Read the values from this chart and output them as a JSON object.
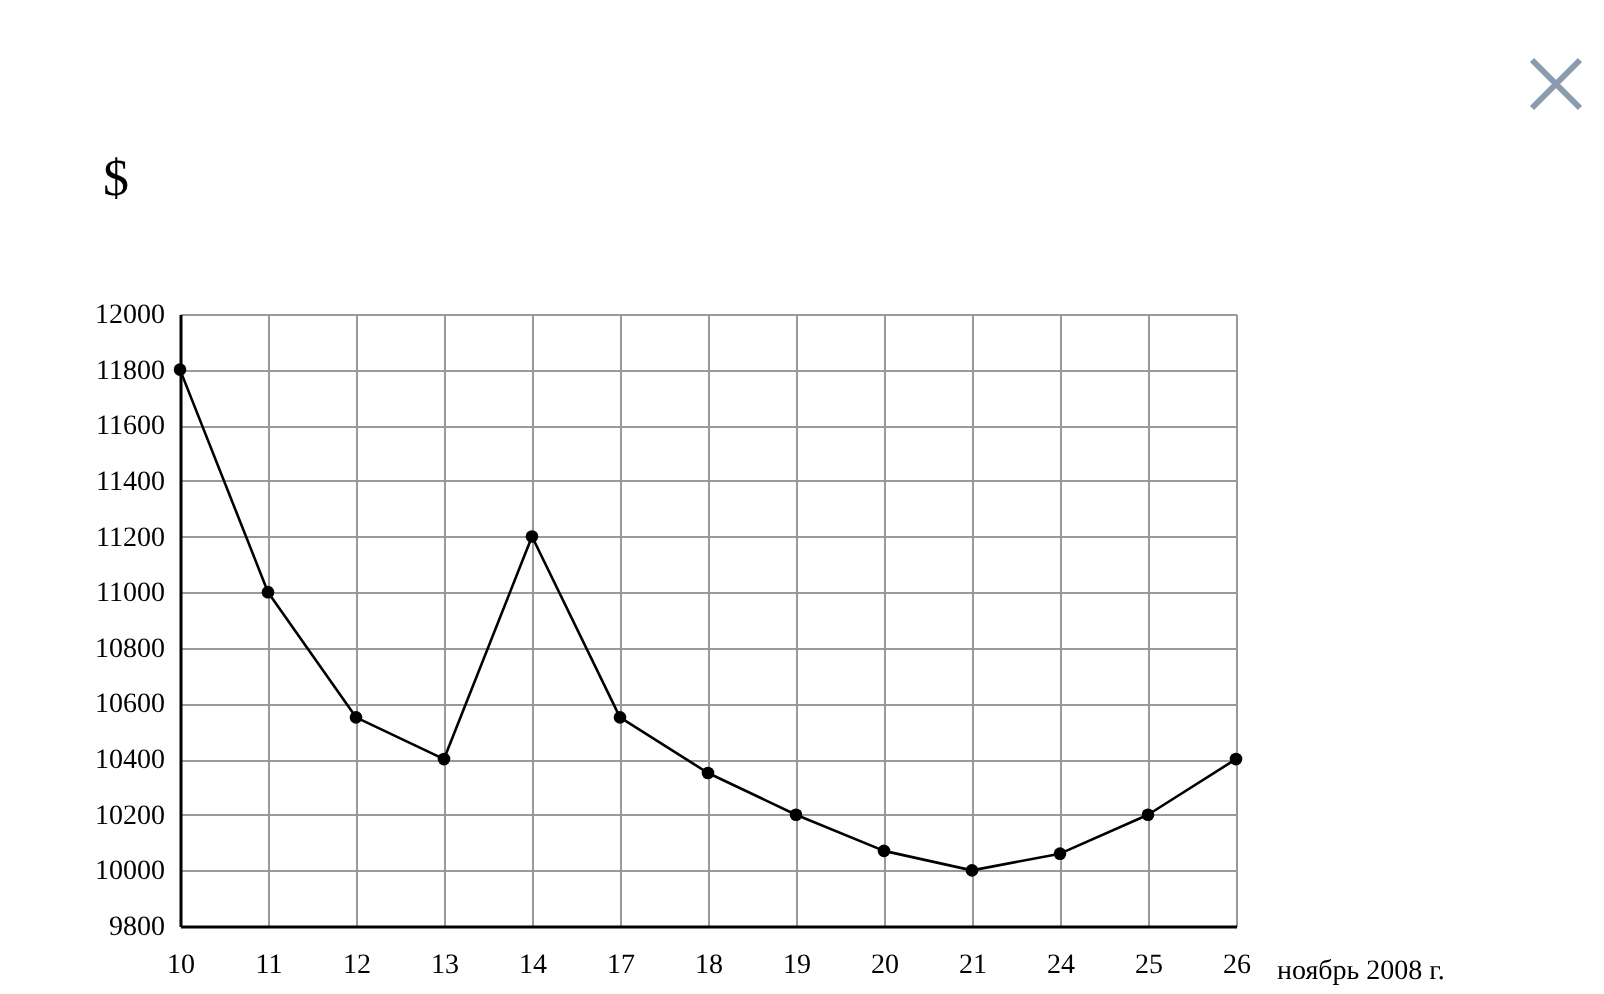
{
  "chart_data": {
    "type": "line",
    "xlabel": "ноябрь 2008 г.",
    "ylabel": "$",
    "categories": [
      "10",
      "11",
      "12",
      "13",
      "14",
      "17",
      "18",
      "19",
      "20",
      "21",
      "24",
      "25",
      "26"
    ],
    "series": [
      {
        "color": "#000000",
        "values": [
          11800,
          11000,
          10550,
          10400,
          11200,
          10550,
          10350,
          10200,
          10070,
          10000,
          10060,
          10200,
          10400
        ]
      }
    ],
    "ylim": [
      9800,
      12000
    ],
    "yticks": [
      9800,
      10000,
      10200,
      10400,
      10600,
      10800,
      11000,
      11200,
      11400,
      11600,
      11800,
      12000
    ],
    "grid": true,
    "marker": "circle",
    "line_style": "solid"
  }
}
